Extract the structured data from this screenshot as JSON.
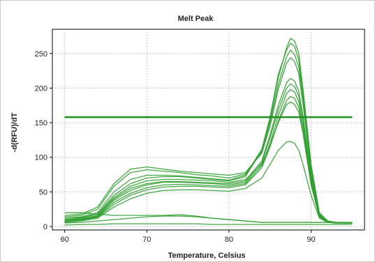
{
  "chart_data": {
    "type": "line",
    "title": "Melt Peak",
    "xlabel": "Temperature, Celsius",
    "ylabel": "-d(RFU)/dT",
    "xlim": [
      58.5,
      96.5
    ],
    "ylim": [
      -5,
      285
    ],
    "x_ticks": [
      60,
      70,
      80,
      90
    ],
    "y_ticks": [
      0,
      50,
      100,
      150,
      200,
      250
    ],
    "grid": true,
    "legend": "none",
    "threshold": 158,
    "series_color": "#2f9e2f",
    "threshold_color": "#1e8f1e",
    "x": [
      60,
      62,
      64,
      66,
      68,
      70,
      72,
      74,
      76,
      78,
      80,
      82,
      84,
      85,
      86,
      87,
      87.5,
      88,
      88.5,
      89,
      90,
      91,
      92,
      93,
      94,
      95
    ],
    "series": [
      {
        "values": [
          10,
          12,
          18,
          45,
          62,
          70,
          72,
          72,
          70,
          68,
          66,
          72,
          110,
          155,
          215,
          258,
          272,
          268,
          250,
          200,
          90,
          20,
          8,
          6,
          5,
          5
        ]
      },
      {
        "values": [
          12,
          14,
          20,
          50,
          68,
          74,
          74,
          73,
          71,
          69,
          67,
          74,
          112,
          158,
          220,
          255,
          265,
          260,
          240,
          190,
          85,
          18,
          7,
          6,
          5,
          5
        ]
      },
      {
        "values": [
          14,
          16,
          25,
          58,
          78,
          82,
          80,
          78,
          75,
          73,
          70,
          76,
          108,
          150,
          205,
          245,
          255,
          248,
          230,
          185,
          80,
          18,
          8,
          6,
          6,
          5
        ]
      },
      {
        "values": [
          16,
          18,
          28,
          62,
          83,
          86,
          83,
          80,
          78,
          76,
          74,
          78,
          106,
          145,
          198,
          236,
          244,
          238,
          220,
          178,
          78,
          17,
          8,
          6,
          6,
          6
        ]
      },
      {
        "values": [
          10,
          11,
          16,
          40,
          55,
          62,
          65,
          65,
          64,
          63,
          62,
          66,
          95,
          132,
          175,
          208,
          214,
          210,
          195,
          160,
          72,
          16,
          7,
          6,
          5,
          5
        ]
      },
      {
        "values": [
          8,
          10,
          15,
          38,
          52,
          60,
          64,
          64,
          63,
          62,
          60,
          64,
          92,
          128,
          168,
          200,
          206,
          202,
          188,
          155,
          70,
          15,
          7,
          6,
          5,
          5
        ]
      },
      {
        "values": [
          9,
          10,
          14,
          35,
          48,
          56,
          60,
          61,
          60,
          59,
          58,
          62,
          88,
          120,
          160,
          192,
          198,
          194,
          180,
          148,
          66,
          15,
          7,
          5,
          5,
          5
        ]
      },
      {
        "values": [
          7,
          9,
          13,
          32,
          45,
          53,
          57,
          58,
          58,
          57,
          56,
          60,
          85,
          115,
          152,
          182,
          188,
          185,
          172,
          140,
          62,
          14,
          6,
          5,
          5,
          5
        ]
      },
      {
        "values": [
          12,
          13,
          18,
          42,
          58,
          66,
          68,
          68,
          67,
          66,
          64,
          68,
          90,
          118,
          150,
          176,
          180,
          176,
          165,
          135,
          60,
          14,
          7,
          6,
          5,
          5
        ]
      },
      {
        "values": [
          6,
          8,
          12,
          28,
          40,
          48,
          52,
          53,
          53,
          52,
          51,
          55,
          70,
          90,
          110,
          122,
          123,
          120,
          110,
          90,
          45,
          12,
          6,
          5,
          5,
          5
        ]
      },
      {
        "values": [
          20,
          20,
          18,
          16,
          16,
          16,
          16,
          17,
          15,
          12,
          10,
          8,
          6,
          6,
          6,
          6,
          6,
          6,
          6,
          6,
          6,
          6,
          6,
          6,
          6,
          6
        ]
      },
      {
        "values": [
          5,
          6,
          8,
          10,
          12,
          14,
          15,
          15,
          14,
          12,
          10,
          8,
          6,
          6,
          6,
          6,
          6,
          6,
          6,
          6,
          6,
          6,
          6,
          6,
          6,
          6
        ]
      },
      {
        "values": [
          2,
          3,
          3,
          4,
          4,
          4,
          4,
          4,
          4,
          3,
          3,
          3,
          3,
          3,
          3,
          3,
          3,
          3,
          3,
          3,
          3,
          3,
          3,
          3,
          3,
          3
        ]
      }
    ]
  }
}
